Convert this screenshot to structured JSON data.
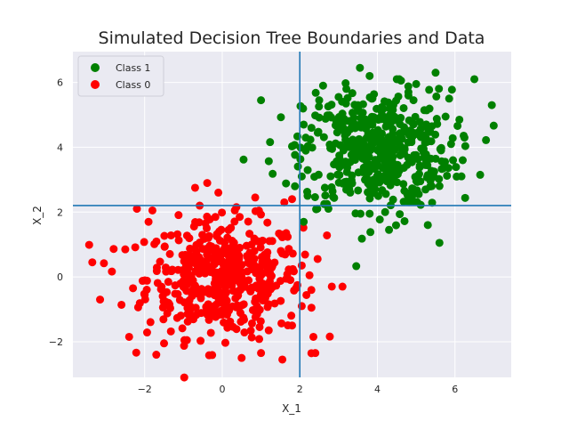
{
  "chart_data": {
    "type": "scatter",
    "title": "Simulated Decision Tree Boundaries and Data",
    "xlabel": "X_1",
    "ylabel": "X_2",
    "xlim": [
      -3.85,
      7.45
    ],
    "ylim": [
      -3.1,
      6.95
    ],
    "grid": true,
    "legend_position": "top-left",
    "x_ticks": [
      -2,
      0,
      2,
      4,
      6
    ],
    "y_ticks": [
      -2,
      0,
      2,
      4,
      6
    ],
    "x_tick_labels": [
      "−2",
      "0",
      "2",
      "4",
      "6"
    ],
    "y_tick_labels": [
      "−2",
      "0",
      "2",
      "4",
      "6"
    ],
    "decision_boundaries": {
      "vertical_x": 2.0,
      "horizontal_y": 2.2,
      "color": "#1f77b4"
    },
    "series": [
      {
        "name": "Class 1",
        "color": "#008000",
        "points": [
          [
            1.0,
            5.45
          ],
          [
            0.55,
            3.62
          ],
          [
            1.2,
            3.57
          ],
          [
            1.3,
            3.18
          ],
          [
            3.55,
            6.45
          ],
          [
            6.5,
            6.1
          ],
          [
            6.95,
            5.3
          ],
          [
            6.8,
            4.22
          ],
          [
            6.65,
            3.15
          ],
          [
            5.6,
            1.05
          ],
          [
            5.3,
            1.6
          ],
          [
            4.7,
            1.72
          ],
          [
            4.3,
            1.45
          ],
          [
            3.6,
            1.18
          ],
          [
            2.1,
            1.7
          ],
          [
            2.6,
            5.9
          ],
          [
            2.5,
            5.45
          ],
          [
            2.3,
            4.6
          ],
          [
            2.1,
            4.7
          ],
          [
            2.05,
            3.1
          ],
          [
            2.2,
            2.5
          ],
          [
            2.45,
            2.1
          ],
          [
            2.7,
            2.25
          ],
          [
            5.0,
            5.95
          ],
          [
            5.5,
            6.3
          ],
          [
            5.85,
            5.5
          ],
          [
            5.9,
            4.1
          ],
          [
            5.95,
            3.6
          ],
          [
            6.2,
            3.6
          ],
          [
            5.7,
            3.35
          ],
          [
            5.4,
            2.8
          ],
          [
            4.9,
            2.5
          ],
          [
            4.2,
            2.0
          ],
          [
            3.8,
            1.95
          ],
          [
            3.3,
            2.6
          ],
          [
            3.0,
            5.55
          ],
          [
            3.2,
            5.8
          ],
          [
            3.8,
            6.2
          ],
          [
            4.5,
            6.1
          ],
          [
            4.8,
            5.7
          ]
        ]
      },
      {
        "name": "Class 0",
        "color": "#ff0000",
        "points": [
          [
            -0.7,
            2.75
          ],
          [
            -0.1,
            2.6
          ],
          [
            -1.9,
            1.7
          ],
          [
            -2.2,
            2.1
          ],
          [
            -1.8,
            2.05
          ],
          [
            -3.35,
            0.45
          ],
          [
            -3.05,
            0.42
          ],
          [
            -3.15,
            -0.7
          ],
          [
            -2.5,
            0.85
          ],
          [
            -2.4,
            -1.85
          ],
          [
            -1.7,
            -2.4
          ],
          [
            -1.5,
            -2.05
          ],
          [
            0.5,
            -2.5
          ],
          [
            1.0,
            -2.35
          ],
          [
            1.55,
            -2.55
          ],
          [
            2.35,
            -1.85
          ],
          [
            2.4,
            -2.35
          ],
          [
            3.1,
            -0.3
          ],
          [
            2.7,
            1.28
          ],
          [
            1.8,
            2.4
          ],
          [
            1.6,
            2.3
          ],
          [
            0.85,
            2.45
          ],
          [
            0.45,
            1.85
          ],
          [
            2.05,
            0.35
          ],
          [
            2.25,
            0.05
          ],
          [
            2.3,
            -0.95
          ],
          [
            2.05,
            -0.9
          ],
          [
            1.8,
            -1.5
          ],
          [
            -2.3,
            -0.35
          ],
          [
            -2.0,
            -0.55
          ]
        ]
      }
    ]
  }
}
